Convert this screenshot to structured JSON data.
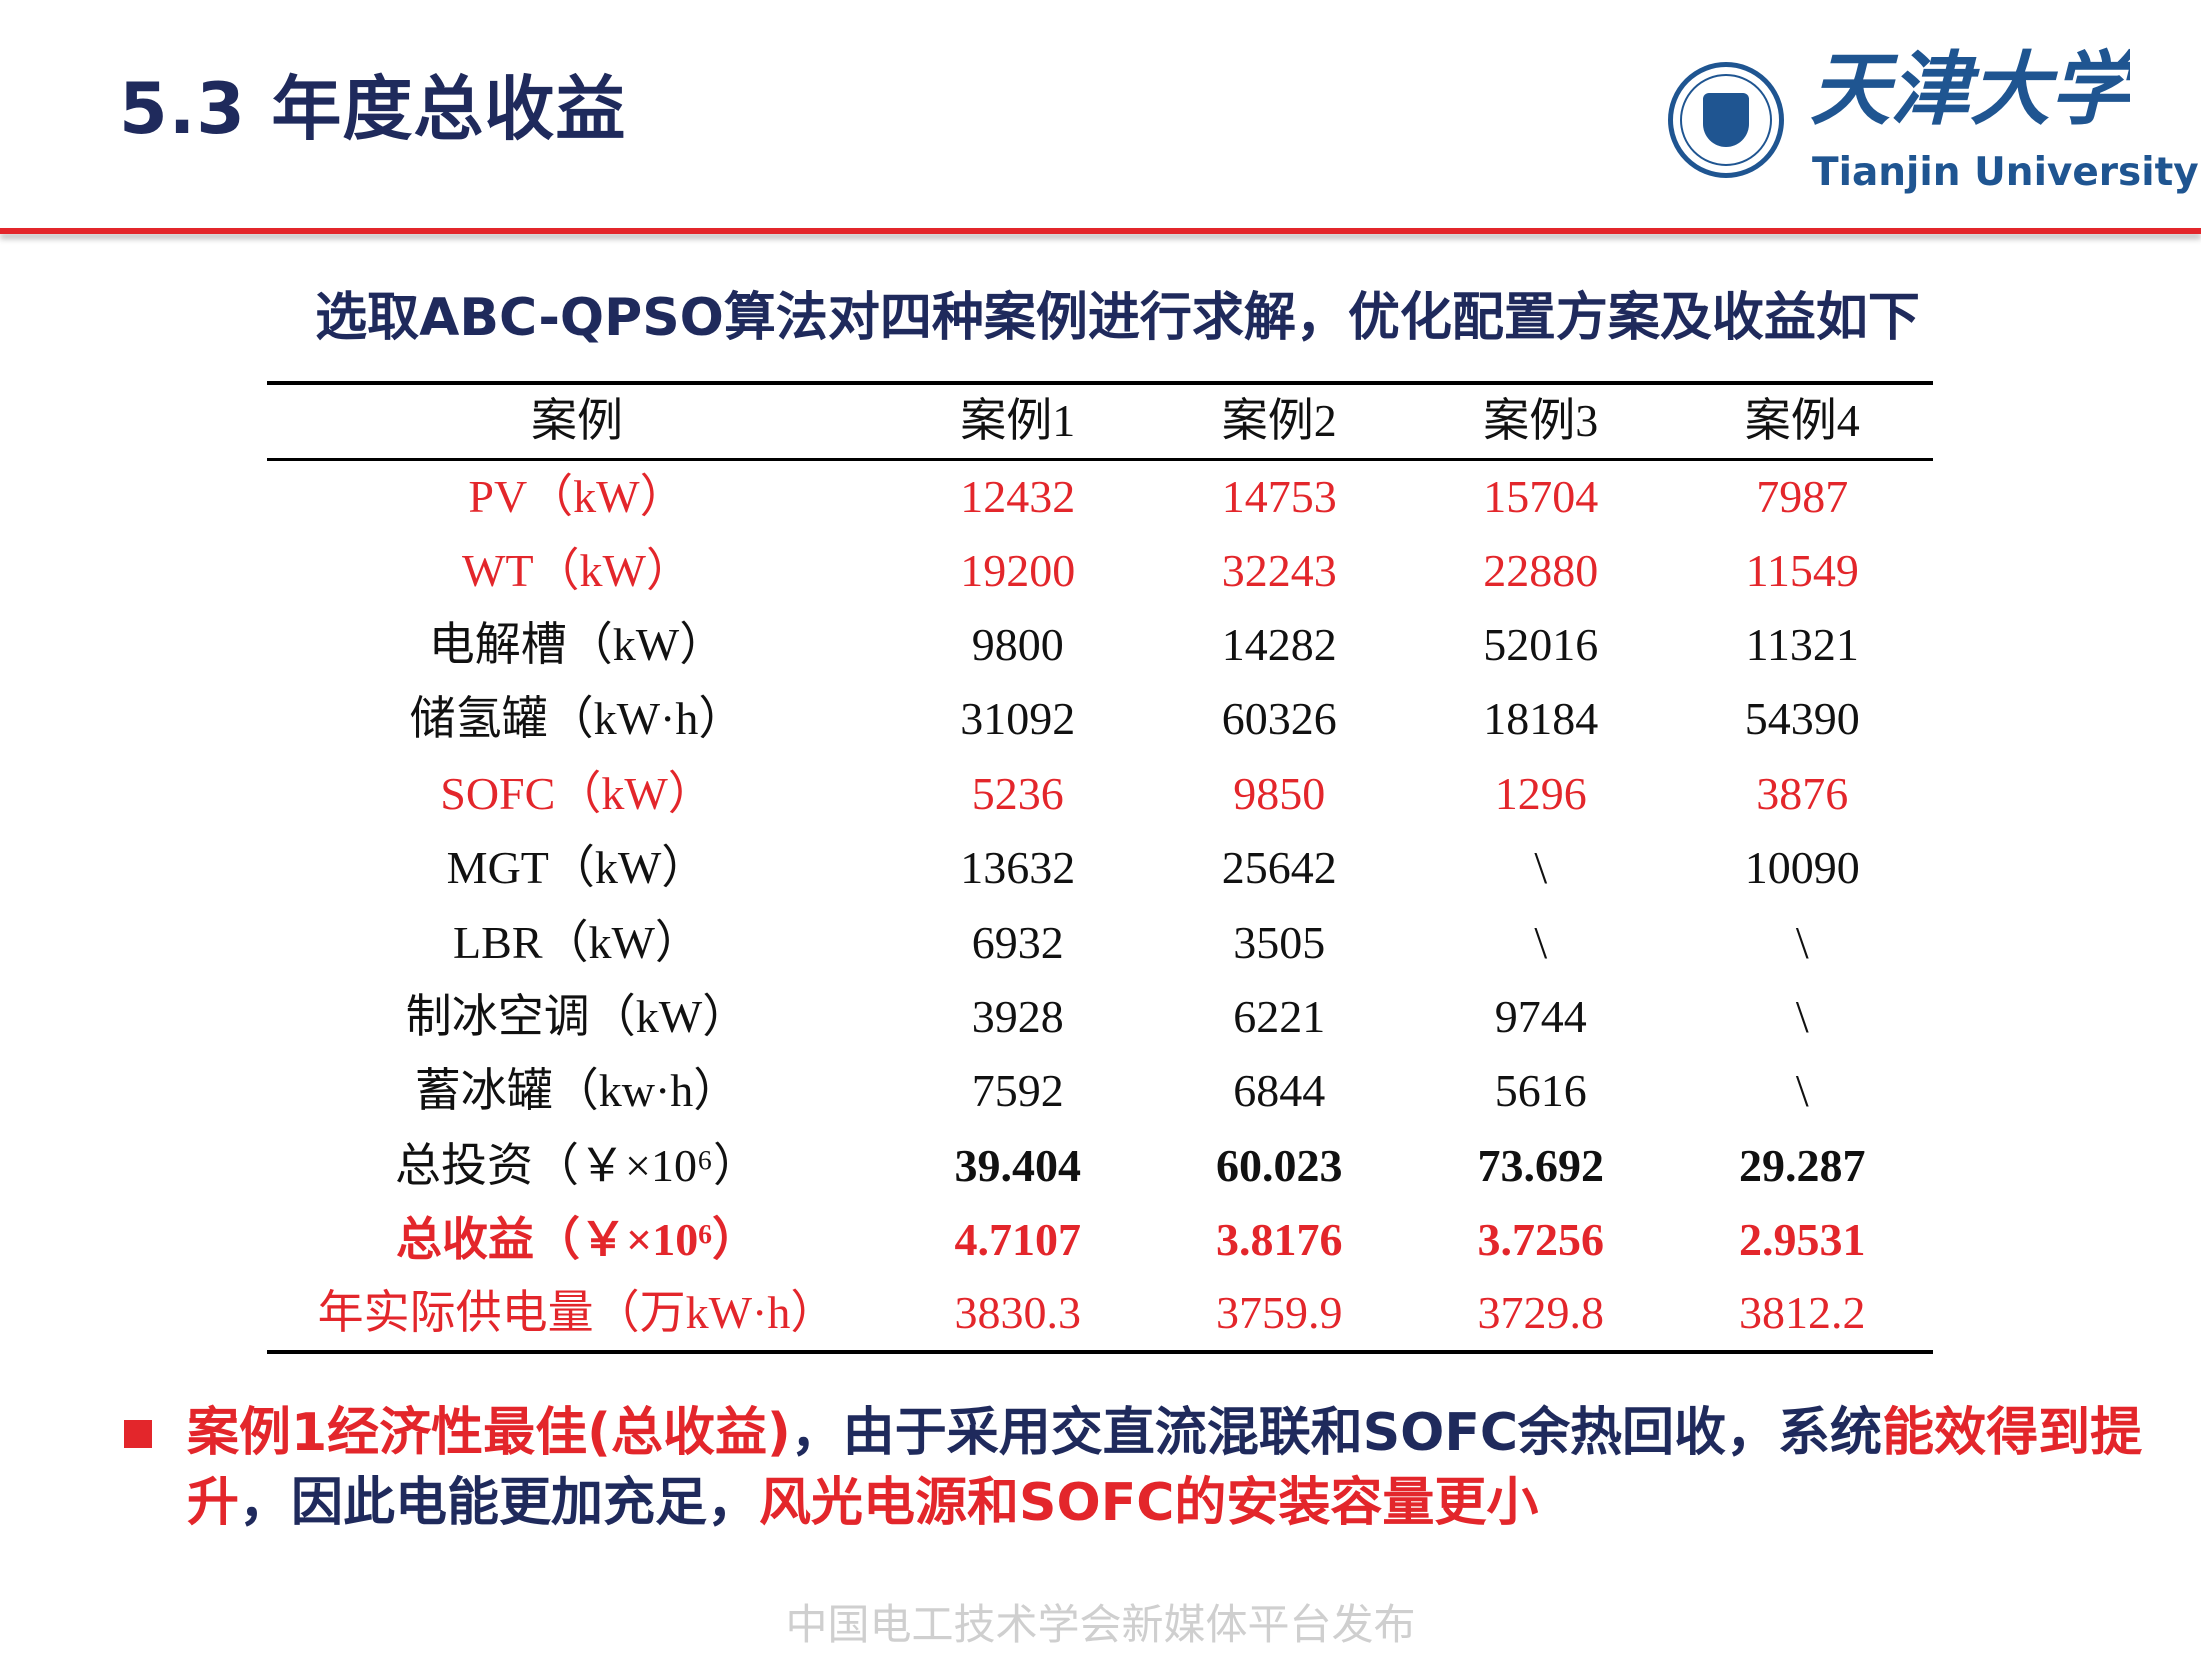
{
  "header": {
    "title": "5.3 年度总收益",
    "logo": {
      "cn": "天津大学",
      "en": "Tianjin University",
      "seal_text": "TIANJIN UNIVERSITY (PEIYANG UNIVERSITY) 北洋 1895 天津大学"
    }
  },
  "subtitle": "选取ABC-QPSO算法对四种案例进行求解，优化配置方案及收益如下",
  "table": {
    "headers": [
      "案例",
      "案例1",
      "案例2",
      "案例3",
      "案例4"
    ],
    "rows": [
      {
        "label": "PV（kW）",
        "values": [
          "12432",
          "14753",
          "15704",
          "7987"
        ],
        "red": true,
        "bold": false,
        "label_bold": false
      },
      {
        "label": "WT（kW）",
        "values": [
          "19200",
          "32243",
          "22880",
          "11549"
        ],
        "red": true,
        "bold": false,
        "label_bold": false
      },
      {
        "label": "电解槽（kW）",
        "values": [
          "9800",
          "14282",
          "52016",
          "11321"
        ],
        "red": false,
        "bold": false,
        "label_bold": false
      },
      {
        "label": "储氢罐（kW·h）",
        "values": [
          "31092",
          "60326",
          "18184",
          "54390"
        ],
        "red": false,
        "bold": false,
        "label_bold": false
      },
      {
        "label": "SOFC（kW）",
        "values": [
          "5236",
          "9850",
          "1296",
          "3876"
        ],
        "red": true,
        "bold": false,
        "label_bold": false
      },
      {
        "label": "MGT（kW）",
        "values": [
          "13632",
          "25642",
          "\\",
          "10090"
        ],
        "red": false,
        "bold": false,
        "label_bold": false
      },
      {
        "label": "LBR（kW）",
        "values": [
          "6932",
          "3505",
          "\\",
          "\\"
        ],
        "red": false,
        "bold": false,
        "label_bold": false
      },
      {
        "label": "制冰空调（kW）",
        "values": [
          "3928",
          "6221",
          "9744",
          "\\"
        ],
        "red": false,
        "bold": false,
        "label_bold": false
      },
      {
        "label": "蓄冰罐（kw·h）",
        "values": [
          "7592",
          "6844",
          "5616",
          "\\"
        ],
        "red": false,
        "bold": false,
        "label_bold": false
      },
      {
        "label": "总投资（￥×10⁶）",
        "values": [
          "39.404",
          "60.023",
          "73.692",
          "29.287"
        ],
        "red": false,
        "bold": true,
        "label_bold": false
      },
      {
        "label": "总收益（￥×10⁶）",
        "values": [
          "4.7107",
          "3.8176",
          "3.7256",
          "2.9531"
        ],
        "red": true,
        "bold": true,
        "label_bold": true
      },
      {
        "label": "年实际供电量（万kW·h）",
        "values": [
          "3830.3",
          "3759.9",
          "3729.8",
          "3812.2"
        ],
        "red": true,
        "bold": false,
        "label_bold": false
      }
    ]
  },
  "summary": {
    "segments": [
      {
        "text": "案例1经济性最佳(总收益)",
        "color": "#e3262b"
      },
      {
        "text": "，由于采用交直流混联和SOFC余热回收，系统",
        "color": "#1f2a5c"
      },
      {
        "text": "能效得到提升",
        "color": "#e3262b"
      },
      {
        "text": "，因此电能更加充足，",
        "color": "#1f2a5c"
      },
      {
        "text": "风光电源和SOFC的安装容量更小",
        "color": "#e3262b"
      }
    ]
  },
  "footer": "中国电工技术学会新媒体平台发布",
  "colors": {
    "navy": "#1f2a5c",
    "red": "#e3262b",
    "logo_blue": "#1f5591"
  }
}
